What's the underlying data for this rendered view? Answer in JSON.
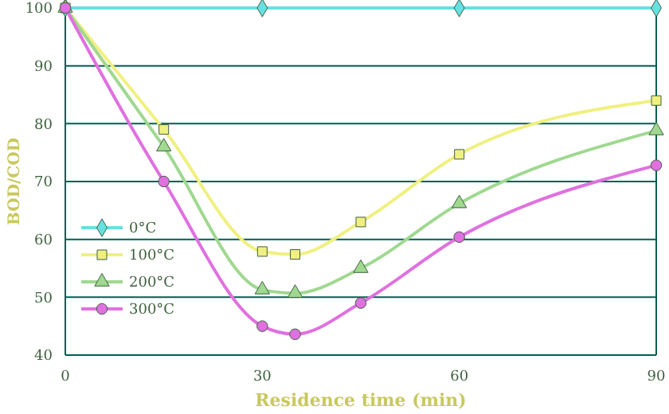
{
  "chart_data": {
    "type": "line",
    "xlabel": "Residence time (min)",
    "ylabel": "BOD/COD",
    "xlim": [
      0,
      90
    ],
    "xticks": [
      0,
      30,
      60,
      90
    ],
    "ylim": [
      40,
      100
    ],
    "yticks": [
      40,
      50,
      60,
      70,
      80,
      90,
      100
    ],
    "grid": "y",
    "legend": "bottom left",
    "series": [
      {
        "name": "0°C",
        "color": "#66e0e0",
        "marker": "diamond",
        "x": [
          0,
          30,
          60,
          90
        ],
        "values": [
          100,
          100,
          100,
          100
        ]
      },
      {
        "name": "100°C",
        "color": "#f0f080",
        "marker": "square",
        "x": [
          0,
          15,
          30,
          35,
          45,
          60,
          90
        ],
        "values": [
          100,
          79,
          57.9,
          57.4,
          63,
          74.7,
          84
        ]
      },
      {
        "name": "200°C",
        "color": "#a0d890",
        "marker": "triangle",
        "x": [
          0,
          15,
          30,
          35,
          45,
          60,
          90
        ],
        "values": [
          100,
          76,
          51.3,
          50.7,
          55,
          66.2,
          78.8
        ]
      },
      {
        "name": "300°C",
        "color": "#e070e0",
        "marker": "circle",
        "x": [
          0,
          15,
          30,
          35,
          45,
          60,
          90
        ],
        "values": [
          100,
          70,
          45,
          43.6,
          49,
          60.4,
          72.8
        ]
      }
    ]
  }
}
